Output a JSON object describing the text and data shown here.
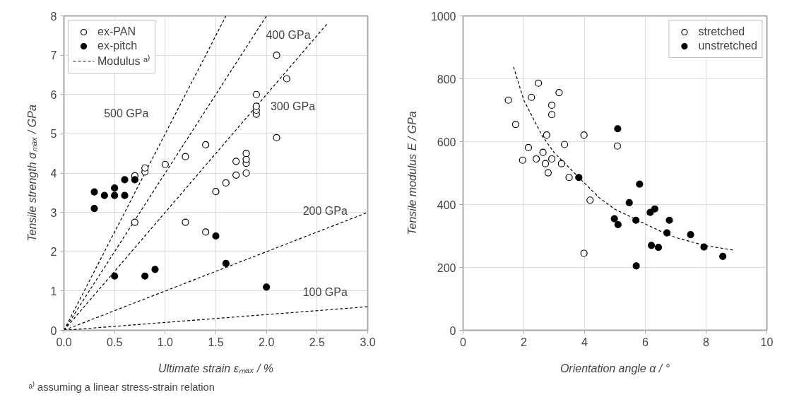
{
  "chart_data": [
    {
      "type": "scatter",
      "xlabel": "Ultimate strain εₘₐₓ / %",
      "ylabel": "Tensile strength σₘₐₓ / GPa",
      "xlim": [
        0,
        3
      ],
      "ylim": [
        0,
        8
      ],
      "xticks": [
        {
          "value": 0,
          "label": "0.0"
        },
        {
          "value": 0.5,
          "label": "0.5"
        },
        {
          "value": 1,
          "label": "1.0"
        },
        {
          "value": 1.5,
          "label": "1.5"
        },
        {
          "value": 2,
          "label": "2.0"
        },
        {
          "value": 2.5,
          "label": "2.5"
        },
        {
          "value": 3,
          "label": "3.0"
        }
      ],
      "yticks": [
        0,
        1,
        2,
        3,
        4,
        5,
        6,
        7,
        8
      ],
      "grid": true,
      "legend": "top left",
      "series": [
        {
          "name": "ex-PAN",
          "marker": "circle",
          "color": "#ffffff",
          "x": [
            0.7,
            0.7,
            0.8,
            0.8,
            1.0,
            1.2,
            1.4,
            1.2,
            1.4,
            1.5,
            1.6,
            1.7,
            1.7,
            1.8,
            1.8,
            1.8,
            1.8,
            1.9,
            1.9,
            1.9,
            1.9,
            2.1,
            2.2,
            2.1
          ],
          "values": [
            2.75,
            3.93,
            4.03,
            4.13,
            4.22,
            4.42,
            4.72,
            2.75,
            2.5,
            3.53,
            3.75,
            3.95,
            4.3,
            4.0,
            4.25,
            4.35,
            4.5,
            5.5,
            5.6,
            5.7,
            6.0,
            7.0,
            6.4,
            4.9
          ]
        },
        {
          "name": "ex-pitch",
          "marker": "circle",
          "color": "#000000",
          "x": [
            0.3,
            0.3,
            0.4,
            0.5,
            0.5,
            0.6,
            0.6,
            0.7,
            0.5,
            0.8,
            0.9,
            1.5,
            1.6,
            2.0
          ],
          "values": [
            3.52,
            3.1,
            3.43,
            3.43,
            3.62,
            3.43,
            3.83,
            3.83,
            1.38,
            1.38,
            1.55,
            2.4,
            1.7,
            1.1
          ]
        },
        {
          "name": "500 GPa",
          "type": "line",
          "marker": "none",
          "line_style": "dashed",
          "color": "#000000",
          "x": [
            0,
            1.6
          ],
          "values": [
            0,
            8
          ]
        },
        {
          "name": "400 GPa",
          "type": "line",
          "marker": "none",
          "line_style": "dashed",
          "color": "#000000",
          "x": [
            0,
            2
          ],
          "values": [
            0,
            8
          ]
        },
        {
          "name": "300 GPa",
          "type": "line",
          "marker": "none",
          "line_style": "dashed",
          "color": "#000000",
          "x": [
            0,
            2.6
          ],
          "values": [
            0,
            7.8
          ]
        },
        {
          "name": "200 GPa",
          "type": "line",
          "marker": "none",
          "line_style": "dashed",
          "color": "#000000",
          "x": [
            0,
            3
          ],
          "values": [
            0,
            3
          ]
        },
        {
          "name": "100 GPa",
          "type": "line",
          "marker": "none",
          "line_style": "dashed",
          "color": "#000000",
          "x": [
            0,
            3
          ],
          "values": [
            0,
            0.6
          ]
        }
      ],
      "annotations": [
        "Modulus ᵃ⁾",
        "ᵃ⁾ assuming a linear stress-strain relation"
      ]
    },
    {
      "type": "scatter",
      "xlabel": "Orientation angle α / °",
      "ylabel": "Tensile modulus E / GPa",
      "xlim": [
        0,
        10
      ],
      "ylim": [
        0,
        1000
      ],
      "xticks": [
        0,
        2,
        4,
        6,
        8,
        10
      ],
      "yticks": [
        0,
        200,
        400,
        600,
        800,
        1000
      ],
      "grid": true,
      "legend": "top right",
      "series": [
        {
          "name": "stretched",
          "marker": "circle",
          "color": "#ffffff",
          "x": [
            1.49,
            1.73,
            1.96,
            2.15,
            2.25,
            2.48,
            2.41,
            2.63,
            2.71,
            2.8,
            2.75,
            2.92,
            2.92,
            2.92,
            3.16,
            3.24,
            3.34,
            3.49,
            3.98,
            4.18,
            3.98,
            5.08
          ],
          "values": [
            732,
            655,
            541,
            581,
            741,
            786,
            545,
            566,
            530,
            501,
            621,
            545,
            716,
            686,
            756,
            530,
            591,
            486,
            621,
            414,
            245,
            586
          ]
        },
        {
          "name": "unstretched",
          "marker": "circle",
          "color": "#000000",
          "x": [
            3.81,
            5.09,
            5.81,
            5.47,
            6.16,
            6.31,
            4.98,
            5.1,
            5.69,
            6.79,
            6.71,
            6.2,
            6.43,
            5.7,
            7.49,
            7.93,
            8.55
          ],
          "values": [
            486,
            641,
            465,
            406,
            375,
            386,
            355,
            336,
            350,
            350,
            310,
            270,
            264,
            205,
            304,
            265,
            235
          ]
        },
        {
          "type": "line",
          "marker": "none",
          "line_style": "dashed",
          "color": "#000000",
          "x": [
            1.66,
            2.0,
            2.17,
            2.6,
            3.0,
            3.81,
            4.5,
            5.0,
            5.66,
            6.5,
            7.0,
            7.95,
            8.9
          ],
          "values": [
            838,
            732,
            700,
            619,
            565,
            486,
            420,
            385,
            354,
            315,
            295,
            270,
            255
          ]
        }
      ]
    }
  ]
}
